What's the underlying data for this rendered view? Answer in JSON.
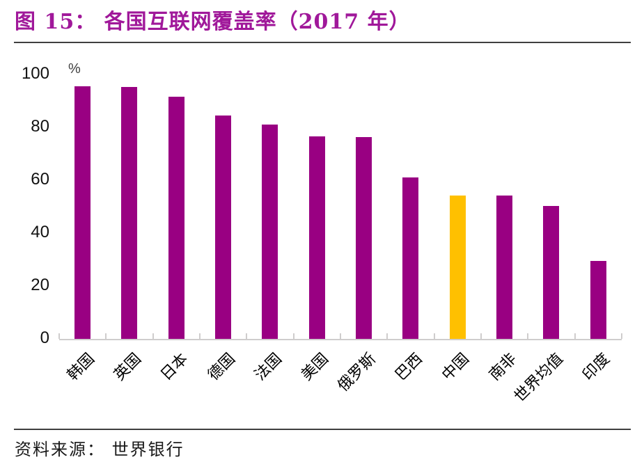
{
  "title": "图 15：  各国互联网覆盖率（2017 年）",
  "source": {
    "text": "资料来源：  世界银行"
  },
  "colors": {
    "title": "#A0189A",
    "divider": "#3f3f3f",
    "axis": "#cfcdcd",
    "bar": "#990082",
    "highlight": "#FFC000"
  },
  "chart_data": {
    "type": "bar",
    "title": "各国互联网覆盖率（2017 年）",
    "unit_label": "%",
    "categories": [
      "韩国",
      "英国",
      "日本",
      "德国",
      "法国",
      "美国",
      "俄罗斯",
      "巴西",
      "中国",
      "南非",
      "世界均值",
      "印度"
    ],
    "values": [
      95.5,
      95.2,
      91.5,
      84.5,
      81.0,
      76.6,
      76.2,
      61.0,
      54.3,
      54.2,
      50.2,
      29.5
    ],
    "highlight_index": 8,
    "highlight_category": "中国",
    "bar_color": "#990082",
    "highlight_color": "#FFC000",
    "xlabel": "",
    "ylabel": "%",
    "ylim": [
      0,
      100
    ],
    "yticks": [
      0,
      20,
      40,
      60,
      80,
      100
    ],
    "grid": false,
    "legend": "none",
    "x_label_rotation_deg": 45
  }
}
